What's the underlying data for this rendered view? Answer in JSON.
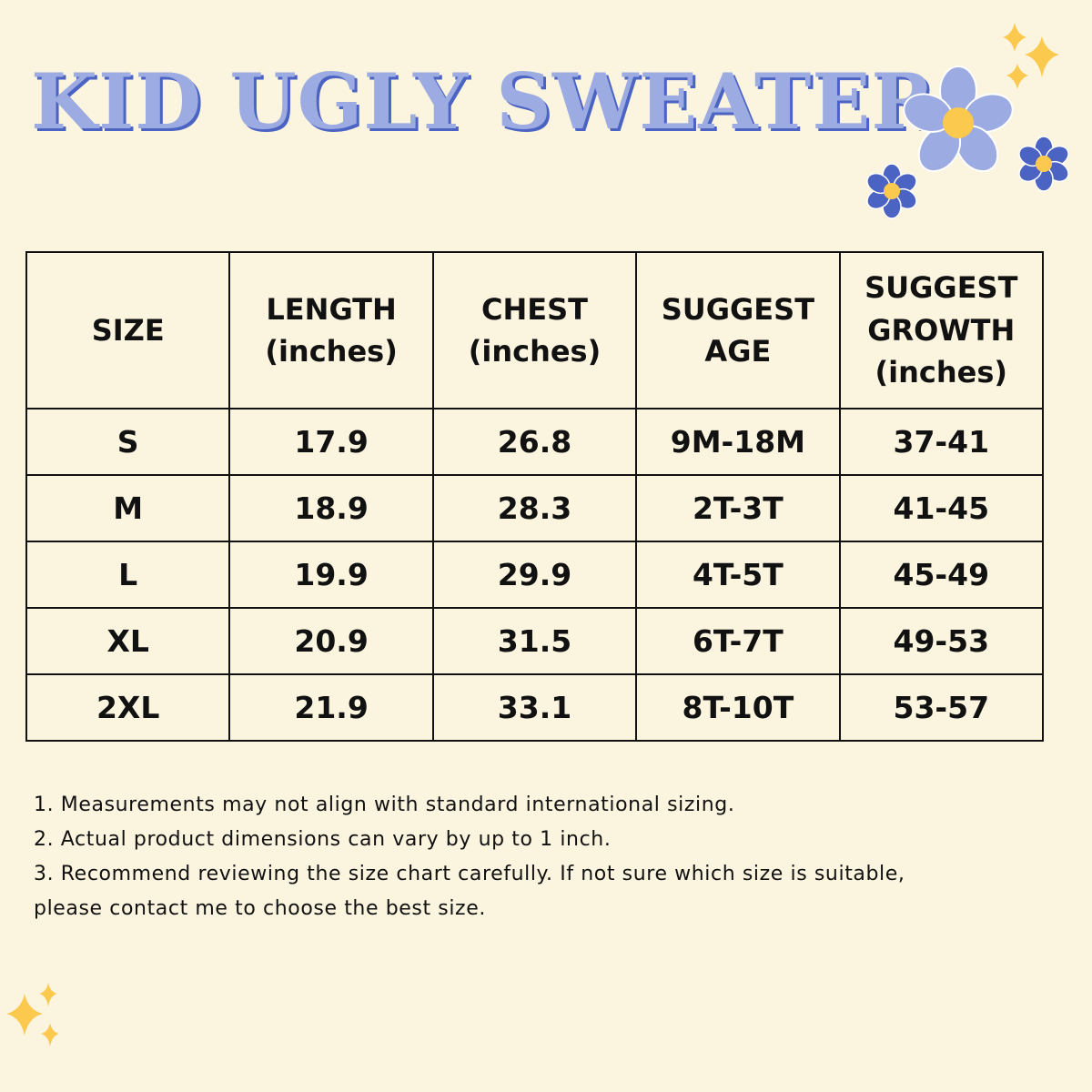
{
  "title": "KID UGLY SWEATER",
  "colors": {
    "background": "#fbf4df",
    "title": "#9cabe2",
    "title_shadow": "#4b63c2",
    "flower_light": "#9cabe2",
    "flower_dark": "#4b63c2",
    "flower_center": "#fcc94f",
    "sparkle": "#fcc94f"
  },
  "table": {
    "headers": [
      {
        "lines": [
          "SIZE"
        ]
      },
      {
        "lines": [
          "LENGTH",
          "(inches)"
        ]
      },
      {
        "lines": [
          "CHEST",
          "(inches)"
        ]
      },
      {
        "lines": [
          "SUGGEST",
          "AGE"
        ]
      },
      {
        "lines": [
          "SUGGEST",
          "GROWTH",
          "(inches)"
        ]
      }
    ],
    "rows": [
      [
        "S",
        "17.9",
        "26.8",
        "9M-18M",
        "37-41"
      ],
      [
        "M",
        "18.9",
        "28.3",
        "2T-3T",
        "41-45"
      ],
      [
        "L",
        "19.9",
        "29.9",
        "4T-5T",
        "45-49"
      ],
      [
        "XL",
        "20.9",
        "31.5",
        "6T-7T",
        "49-53"
      ],
      [
        "2XL",
        "21.9",
        "33.1",
        "8T-10T",
        "53-57"
      ]
    ]
  },
  "notes": [
    "1. Measurements may not align with standard international sizing.",
    "2. Actual product dimensions can vary by up to 1 inch.",
    "3. Recommend reviewing the size chart carefully. If not sure which size is suitable,",
    "please contact me to choose the best size."
  ],
  "icons": [
    "flower-icon",
    "sparkle-icon"
  ]
}
